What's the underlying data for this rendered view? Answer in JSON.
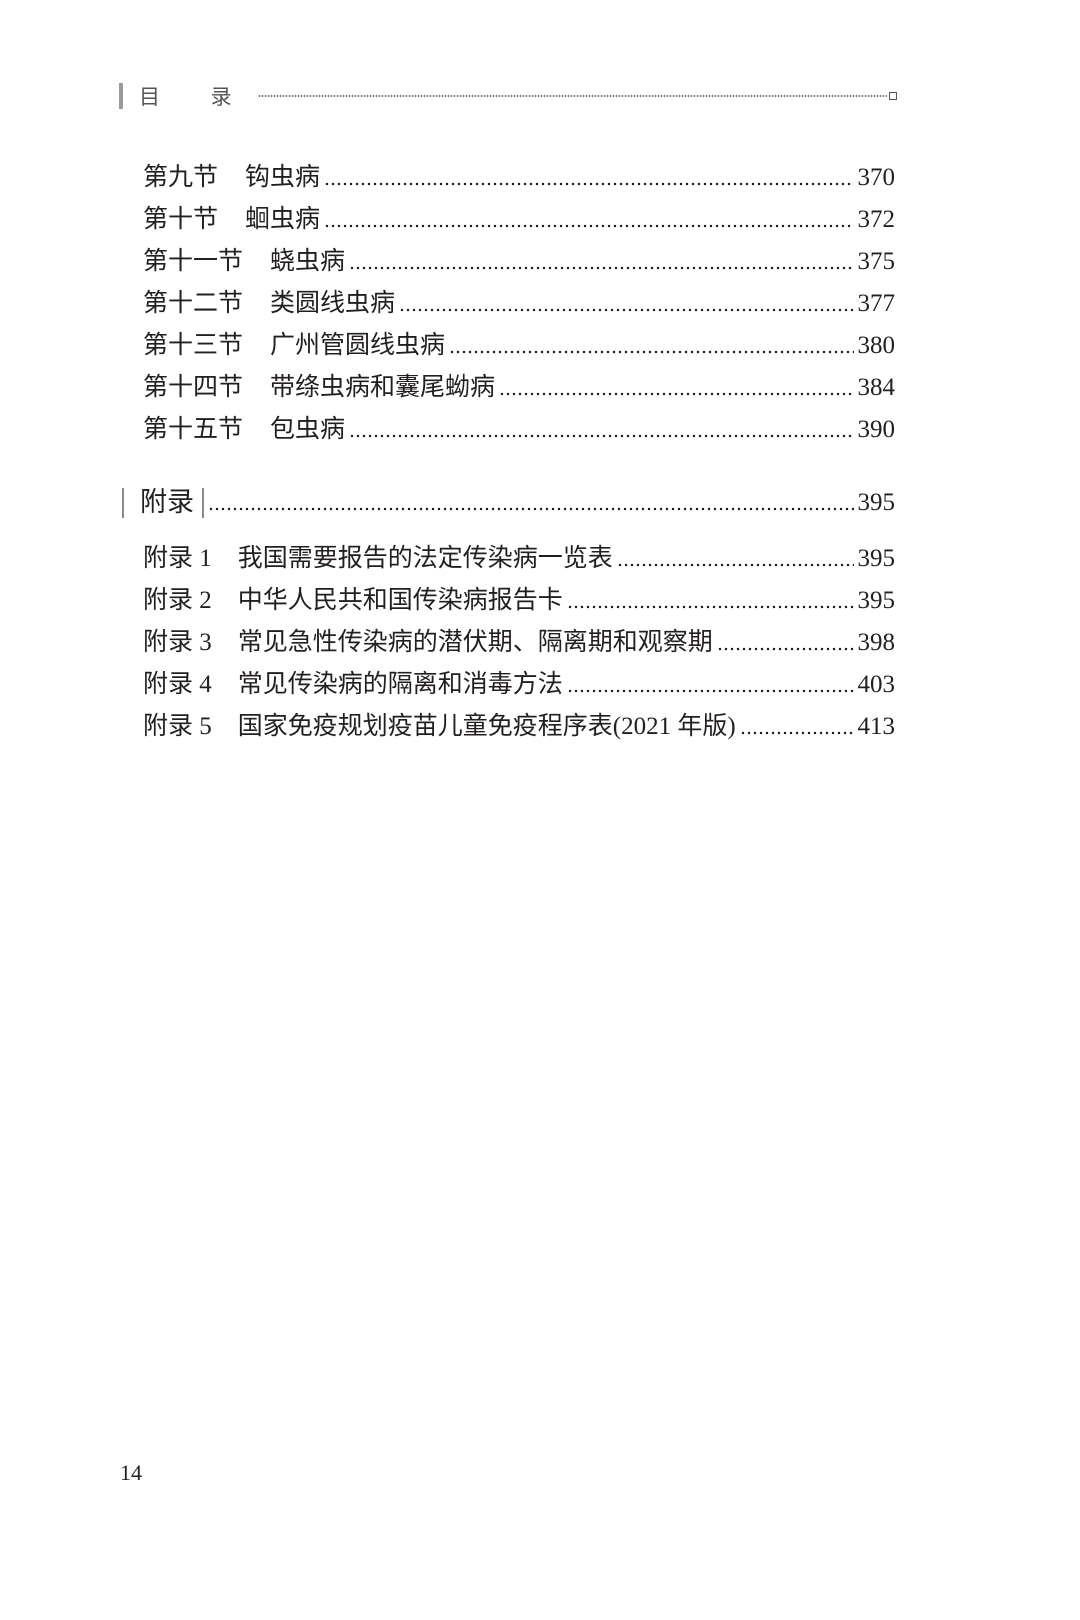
{
  "header": {
    "title": "目 录"
  },
  "sections": [
    {
      "label": "第九节",
      "name": "钩虫病",
      "page": "370"
    },
    {
      "label": "第十节",
      "name": "蛔虫病",
      "page": "372"
    },
    {
      "label": "第十一节",
      "name": "蛲虫病",
      "page": "375"
    },
    {
      "label": "第十二节",
      "name": "类圆线虫病",
      "page": "377"
    },
    {
      "label": "第十三节",
      "name": "广州管圆线虫病",
      "page": "380"
    },
    {
      "label": "第十四节",
      "name": "带绦虫病和囊尾蚴病",
      "page": "384"
    },
    {
      "label": "第十五节",
      "name": "包虫病",
      "page": "390"
    }
  ],
  "appendix": {
    "title": "附录",
    "page": "395",
    "items": [
      {
        "label": "附录 1",
        "name": "我国需要报告的法定传染病一览表",
        "page": "395"
      },
      {
        "label": "附录 2",
        "name": "中华人民共和国传染病报告卡",
        "page": "395"
      },
      {
        "label": "附录 3",
        "name": "常见急性传染病的潜伏期、隔离期和观察期",
        "page": "398"
      },
      {
        "label": "附录 4",
        "name": "常见传染病的隔离和消毒方法",
        "page": "403"
      },
      {
        "label": "附录 5",
        "name": "国家免疫规划疫苗儿童免疫程序表(2021 年版)",
        "page": "413"
      }
    ]
  },
  "footer": {
    "page_number": "14"
  }
}
